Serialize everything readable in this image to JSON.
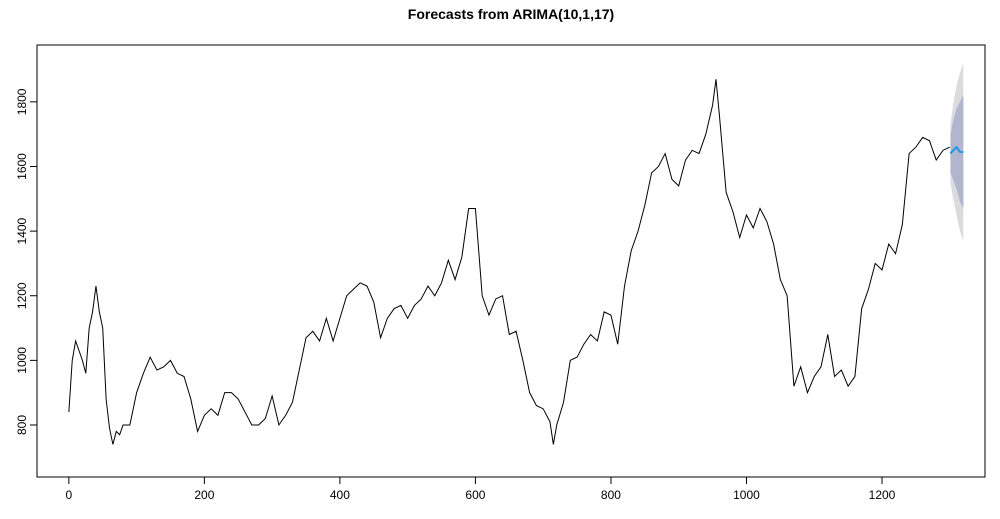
{
  "chart_data": {
    "type": "forecast",
    "title": "Forecasts from ARIMA(10,1,17)",
    "series": [
      {
        "color": "#000000",
        "x": [
          0,
          5,
          10,
          20,
          25,
          30,
          35,
          40,
          45,
          50,
          55,
          60,
          65,
          70,
          75,
          80,
          90,
          100,
          110,
          120,
          130,
          140,
          150,
          160,
          170,
          180,
          190,
          200,
          210,
          220,
          230,
          240,
          250,
          260,
          270,
          280,
          290,
          300,
          310,
          320,
          330,
          340,
          350,
          360,
          370,
          380,
          390,
          400,
          410,
          420,
          430,
          440,
          450,
          460,
          470,
          480,
          490,
          500,
          510,
          520,
          530,
          540,
          550,
          560,
          570,
          580,
          590,
          600,
          610,
          620,
          630,
          640,
          650,
          660,
          670,
          680,
          690,
          700,
          710,
          715,
          720,
          730,
          740,
          750,
          760,
          770,
          780,
          790,
          800,
          810,
          820,
          830,
          840,
          850,
          860,
          870,
          880,
          890,
          900,
          910,
          920,
          930,
          940,
          950,
          955,
          960,
          970,
          980,
          990,
          1000,
          1010,
          1020,
          1030,
          1040,
          1050,
          1060,
          1070,
          1080,
          1090,
          1100,
          1110,
          1120,
          1130,
          1140,
          1150,
          1160,
          1170,
          1180,
          1190,
          1200,
          1210,
          1220,
          1230,
          1240,
          1250,
          1260,
          1270,
          1280,
          1290,
          1300
        ],
        "values": [
          840,
          1000,
          1060,
          1000,
          960,
          1100,
          1150,
          1230,
          1150,
          1100,
          880,
          790,
          740,
          780,
          770,
          800,
          800,
          900,
          960,
          1010,
          970,
          980,
          1000,
          960,
          950,
          880,
          780,
          830,
          850,
          830,
          900,
          900,
          880,
          840,
          800,
          800,
          820,
          890,
          800,
          830,
          870,
          970,
          1070,
          1090,
          1060,
          1130,
          1060,
          1130,
          1200,
          1220,
          1240,
          1230,
          1180,
          1070,
          1130,
          1160,
          1170,
          1130,
          1170,
          1190,
          1230,
          1200,
          1240,
          1310,
          1250,
          1320,
          1470,
          1470,
          1200,
          1140,
          1190,
          1200,
          1080,
          1090,
          1000,
          900,
          860,
          850,
          810,
          740,
          800,
          870,
          1000,
          1010,
          1050,
          1080,
          1060,
          1150,
          1140,
          1050,
          1230,
          1340,
          1400,
          1480,
          1580,
          1600,
          1640,
          1560,
          1540,
          1620,
          1650,
          1640,
          1700,
          1790,
          1870,
          1760,
          1520,
          1460,
          1380,
          1450,
          1410,
          1470,
          1430,
          1360,
          1250,
          1200,
          920,
          980,
          900,
          950,
          980,
          1080,
          950,
          970,
          920,
          950,
          1160,
          1220,
          1300,
          1280,
          1360,
          1330,
          1420,
          1640,
          1660,
          1690,
          1680,
          1620,
          1650,
          1660
        ]
      }
    ],
    "forecast": {
      "x": [
        1301,
        1305,
        1310,
        1315,
        1320
      ],
      "mean": [
        1640,
        1650,
        1660,
        1645,
        1645
      ],
      "mean_color": "#2297e6",
      "lo80": [
        1580,
        1560,
        1530,
        1490,
        1470
      ],
      "hi80": [
        1700,
        1740,
        1780,
        1800,
        1820
      ],
      "color80": "#b1b5ce",
      "lo95": [
        1550,
        1500,
        1450,
        1400,
        1370
      ],
      "hi95": [
        1730,
        1790,
        1850,
        1890,
        1920
      ],
      "color95": "#dbdbdf"
    },
    "xlim": [
      -47,
      1352
    ],
    "ylim": [
      639,
      1976
    ],
    "xticks": [
      0,
      200,
      400,
      600,
      800,
      1000,
      1200
    ],
    "yticks": [
      800,
      1000,
      1200,
      1400,
      1600,
      1800
    ]
  }
}
